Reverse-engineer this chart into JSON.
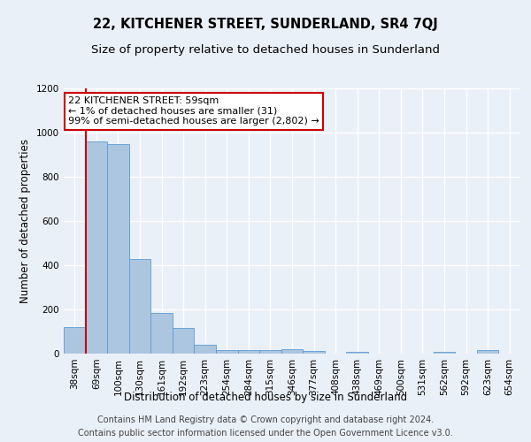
{
  "title": "22, KITCHENER STREET, SUNDERLAND, SR4 7QJ",
  "subtitle": "Size of property relative to detached houses in Sunderland",
  "xlabel": "Distribution of detached houses by size in Sunderland",
  "ylabel": "Number of detached properties",
  "categories": [
    "38sqm",
    "69sqm",
    "100sqm",
    "130sqm",
    "161sqm",
    "192sqm",
    "223sqm",
    "254sqm",
    "284sqm",
    "315sqm",
    "346sqm",
    "377sqm",
    "408sqm",
    "438sqm",
    "469sqm",
    "500sqm",
    "531sqm",
    "562sqm",
    "592sqm",
    "623sqm",
    "654sqm"
  ],
  "values": [
    120,
    960,
    950,
    430,
    185,
    115,
    42,
    18,
    15,
    15,
    20,
    12,
    0,
    10,
    0,
    0,
    0,
    10,
    0,
    15,
    0
  ],
  "bar_color": "#adc6e0",
  "bar_edge_color": "#5b9bd5",
  "background_color": "#eaf0f8",
  "grid_color": "#ffffff",
  "vline_color": "#cc0000",
  "vline_x_index": 1,
  "annotation_text": "22 KITCHENER STREET: 59sqm\n← 1% of detached houses are smaller (31)\n99% of semi-detached houses are larger (2,802) →",
  "annotation_box_color": "#ffffff",
  "annotation_box_edge": "#cc0000",
  "ylim": [
    0,
    1200
  ],
  "yticks": [
    0,
    200,
    400,
    600,
    800,
    1000,
    1200
  ],
  "footer_line1": "Contains HM Land Registry data © Crown copyright and database right 2024.",
  "footer_line2": "Contains public sector information licensed under the Open Government Licence v3.0.",
  "title_fontsize": 10.5,
  "subtitle_fontsize": 9.5,
  "label_fontsize": 8.5,
  "tick_fontsize": 7.5,
  "footer_fontsize": 7.0,
  "annotation_fontsize": 8.0
}
